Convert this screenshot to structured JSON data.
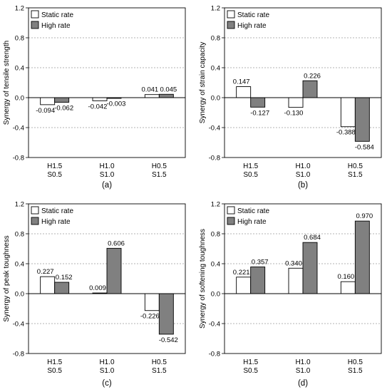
{
  "chart_data": [
    {
      "type": "bar",
      "panel_label": "(a)",
      "ylabel": "Synergy of tensile strength",
      "ylim": [
        -0.8,
        1.2
      ],
      "yticks": [
        "1.2",
        "0.8",
        "0.4",
        "0.0",
        "-0.4",
        "-0.8"
      ],
      "grid": true,
      "legend_position": "top-left",
      "categories": [
        [
          "H1.5",
          "S0.5"
        ],
        [
          "H1.0",
          "S1.0"
        ],
        [
          "H0.5",
          "S1.5"
        ]
      ],
      "series": [
        {
          "name": "Static rate",
          "color": "#ffffff",
          "values": [
            -0.094,
            -0.042,
            0.041
          ],
          "labels": [
            "-0.094",
            "-0.042",
            "0.041"
          ]
        },
        {
          "name": "High rate",
          "color": "#808080",
          "values": [
            -0.062,
            -0.003,
            0.045
          ],
          "labels": [
            "-0.062",
            "-0.003",
            "0.045"
          ]
        }
      ]
    },
    {
      "type": "bar",
      "panel_label": "(b)",
      "ylabel": "Synergy of strain capacity",
      "ylim": [
        -0.8,
        1.2
      ],
      "yticks": [
        "1.2",
        "0.8",
        "0.4",
        "0.0",
        "-0.4",
        "-0.8"
      ],
      "grid": true,
      "legend_position": "top-left",
      "categories": [
        [
          "H1.5",
          "S0.5"
        ],
        [
          "H1.0",
          "S1.0"
        ],
        [
          "H0.5",
          "S1.5"
        ]
      ],
      "series": [
        {
          "name": "Static rate",
          "color": "#ffffff",
          "values": [
            0.147,
            -0.13,
            -0.388
          ],
          "labels": [
            "0.147",
            "-0.130",
            "-0.388"
          ]
        },
        {
          "name": "High rate",
          "color": "#808080",
          "values": [
            -0.127,
            0.226,
            -0.584
          ],
          "labels": [
            "-0.127",
            "0.226",
            "-0.584"
          ]
        }
      ]
    },
    {
      "type": "bar",
      "panel_label": "(c)",
      "ylabel": "Synergy of peak toughness",
      "ylim": [
        -0.8,
        1.2
      ],
      "yticks": [
        "1.2",
        "0.8",
        "0.4",
        "0.0",
        "-0.4",
        "-0.8"
      ],
      "grid": true,
      "legend_position": "top-left",
      "categories": [
        [
          "H1.5",
          "S0.5"
        ],
        [
          "H1.0",
          "S1.0"
        ],
        [
          "H0.5",
          "S1.5"
        ]
      ],
      "series": [
        {
          "name": "Static rate",
          "color": "#ffffff",
          "values": [
            0.227,
            0.009,
            -0.226
          ],
          "labels": [
            "0.227",
            "0.009",
            "-0.226"
          ]
        },
        {
          "name": "High rate",
          "color": "#808080",
          "values": [
            0.152,
            0.606,
            -0.542
          ],
          "labels": [
            "0.152",
            "0.606",
            "-0.542"
          ]
        }
      ]
    },
    {
      "type": "bar",
      "panel_label": "(d)",
      "ylabel": "Synergy of softening toughness",
      "ylim": [
        -0.8,
        1.2
      ],
      "yticks": [
        "1.2",
        "0.8",
        "0.4",
        "0.0",
        "-0.4",
        "-0.8"
      ],
      "grid": true,
      "legend_position": "top-left",
      "categories": [
        [
          "H1.5",
          "S0.5"
        ],
        [
          "H1.0",
          "S1.0"
        ],
        [
          "H0.5",
          "S1.5"
        ]
      ],
      "series": [
        {
          "name": "Static rate",
          "color": "#ffffff",
          "values": [
            0.221,
            0.34,
            0.16
          ],
          "labels": [
            "0.221",
            "0.340",
            "0.160"
          ]
        },
        {
          "name": "High rate",
          "color": "#808080",
          "values": [
            0.357,
            0.684,
            0.97
          ],
          "labels": [
            "0.357",
            "0.684",
            "0.970"
          ]
        }
      ]
    }
  ]
}
